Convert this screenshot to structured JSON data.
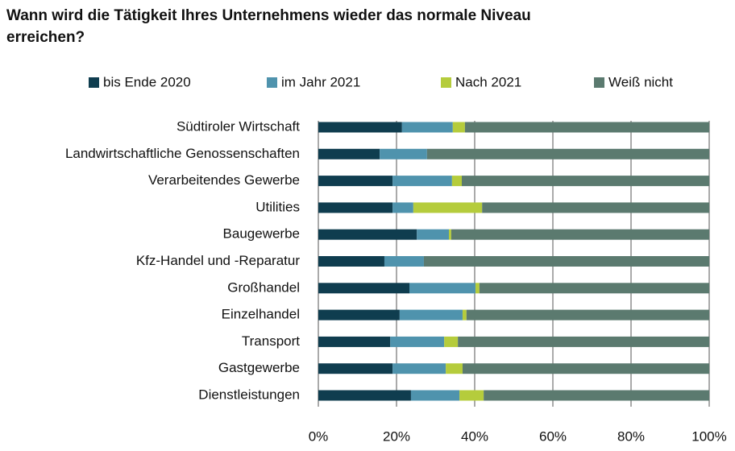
{
  "chart_data": {
    "type": "stacked_barh",
    "title": "Wann wird die Tätigkeit Ihres Unternehmens wieder das normale Niveau erreichen?",
    "categories": [
      "Südtiroler Wirtschaft",
      "Landwirtschaftliche Genossenschaften",
      "Verarbeitendes Gewerbe",
      "Utilities",
      "Baugewerbe",
      "Kfz-Handel und -Reparatur",
      "Großhandel",
      "Einzelhandel",
      "Transport",
      "Gastgewerbe",
      "Dienstleistungen"
    ],
    "series": [
      {
        "name": "bis Ende 2020",
        "color": "#0f3d4f",
        "values": [
          21.4,
          15.7,
          19,
          19,
          25.2,
          16.9,
          23.3,
          20.8,
          18.4,
          19,
          23.7
        ]
      },
      {
        "name": "im Jahr 2021",
        "color": "#4f93ad",
        "values": [
          13,
          12.1,
          15.2,
          5.3,
          8.2,
          10.1,
          16.9,
          16.1,
          13.8,
          13.6,
          12.4
        ]
      },
      {
        "name": "Nach 2021",
        "color": "#b5cc3c",
        "values": [
          3.1,
          0,
          2.5,
          17.6,
          0.6,
          0,
          1,
          1,
          3.5,
          4.3,
          6.2
        ]
      },
      {
        "name": "Weiß nicht",
        "color": "#5b7a6f",
        "values": [
          62.5,
          72.2,
          63.3,
          58.1,
          66,
          73,
          58.8,
          62.1,
          64.3,
          63.1,
          57.7
        ]
      }
    ],
    "xlim": [
      0,
      100
    ],
    "xticks": [
      {
        "value": 0,
        "label": "0%"
      },
      {
        "value": 20,
        "label": "20%"
      },
      {
        "value": 40,
        "label": "40%"
      },
      {
        "value": 60,
        "label": "60%"
      },
      {
        "value": 80,
        "label": "80%"
      },
      {
        "value": 100,
        "label": "100%"
      }
    ],
    "grid": true,
    "legend": "top"
  }
}
